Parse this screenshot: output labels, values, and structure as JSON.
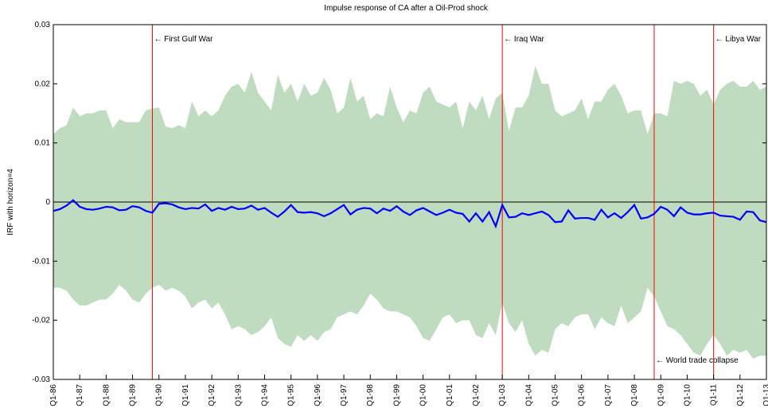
{
  "chart_data": {
    "type": "band-line",
    "title": "Impulse response of CA after a Oil-Prod shock",
    "y_label": "IRF with horizon=4",
    "categories": [
      "Q1-86",
      null,
      null,
      null,
      "Q1-87",
      null,
      null,
      null,
      "Q1-88",
      null,
      null,
      null,
      "Q1-89",
      null,
      null,
      null,
      "Q1-90",
      null,
      null,
      null,
      "Q1-91",
      null,
      null,
      null,
      "Q1-92",
      null,
      null,
      null,
      "Q1-93",
      null,
      null,
      null,
      "Q1-94",
      null,
      null,
      null,
      "Q1-95",
      null,
      null,
      null,
      "Q1-96",
      null,
      null,
      null,
      "Q1-97",
      null,
      null,
      null,
      "Q1-98",
      null,
      null,
      null,
      "Q1-99",
      null,
      null,
      null,
      "Q1-00",
      null,
      null,
      null,
      "Q1-01",
      null,
      null,
      null,
      "Q1-02",
      null,
      null,
      null,
      "Q1-03",
      null,
      null,
      null,
      "Q1-04",
      null,
      null,
      null,
      "Q1-05",
      null,
      null,
      null,
      "Q1-06",
      null,
      null,
      null,
      "Q1-07",
      null,
      null,
      null,
      "Q1-08",
      null,
      null,
      null,
      "Q1-09",
      null,
      null,
      null,
      "Q1-10",
      null,
      null,
      null,
      "Q1-11",
      null,
      null,
      null,
      "Q1-12",
      null,
      null,
      null,
      "Q1-13"
    ],
    "series": [
      {
        "color": "#0000ff",
        "values": [
          -0.0015,
          -0.0012,
          -0.0006,
          0.0003,
          -0.0008,
          -0.0012,
          -0.0013,
          -0.0011,
          -0.0008,
          -0.0009,
          -0.0014,
          -0.0013,
          -0.0007,
          -0.0009,
          -0.0015,
          -0.0018,
          -0.0003,
          -0.0002,
          -0.0004,
          -0.0009,
          -0.0012,
          -0.001,
          -0.0011,
          -0.0004,
          -0.0015,
          -0.001,
          -0.0013,
          -0.0008,
          -0.0012,
          -0.0011,
          -0.0006,
          -0.0013,
          -0.001,
          -0.0018,
          -0.0025,
          -0.0016,
          -0.0005,
          -0.0017,
          -0.0018,
          -0.0017,
          -0.0019,
          -0.0024,
          -0.0019,
          -0.0012,
          -0.0005,
          -0.0021,
          -0.0013,
          -0.001,
          -0.0011,
          -0.0019,
          -0.0011,
          -0.0015,
          -0.0007,
          -0.0016,
          -0.0022,
          -0.0014,
          -0.001,
          -0.0016,
          -0.0022,
          -0.0018,
          -0.0013,
          -0.0018,
          -0.002,
          -0.0033,
          -0.0019,
          -0.0033,
          -0.0017,
          -0.0041,
          -0.0005,
          -0.0026,
          -0.0025,
          -0.0019,
          -0.0022,
          -0.0019,
          -0.0016,
          -0.0022,
          -0.0034,
          -0.0033,
          -0.0014,
          -0.0028,
          -0.0027,
          -0.0027,
          -0.003,
          -0.0013,
          -0.0026,
          -0.0019,
          -0.0027,
          -0.0017,
          -0.0005,
          -0.0028,
          -0.0026,
          -0.002,
          -0.0008,
          -0.0013,
          -0.0024,
          -0.0009,
          -0.0018,
          -0.0021,
          -0.0021,
          -0.0019,
          -0.0018,
          -0.0023,
          -0.0024,
          -0.0025,
          -0.003,
          -0.0016,
          -0.0017,
          -0.0031,
          -0.0034
        ]
      }
    ],
    "band": {
      "color": "#c0dcc0",
      "upper": [
        0.0115,
        0.0125,
        0.013,
        0.016,
        0.0145,
        0.015,
        0.015,
        0.0155,
        0.0155,
        0.0125,
        0.014,
        0.0135,
        0.0135,
        0.0135,
        0.0155,
        0.0158,
        0.016,
        0.0128,
        0.0125,
        0.013,
        0.0125,
        0.017,
        0.0145,
        0.0155,
        0.0145,
        0.0155,
        0.018,
        0.0195,
        0.02,
        0.0185,
        0.022,
        0.0185,
        0.017,
        0.0155,
        0.0215,
        0.0185,
        0.02,
        0.017,
        0.02,
        0.018,
        0.0185,
        0.021,
        0.019,
        0.015,
        0.016,
        0.021,
        0.017,
        0.018,
        0.014,
        0.015,
        0.0145,
        0.0195,
        0.016,
        0.0135,
        0.0155,
        0.015,
        0.0185,
        0.0195,
        0.017,
        0.0165,
        0.016,
        0.017,
        0.0125,
        0.017,
        0.0155,
        0.018,
        0.014,
        0.0175,
        0.0185,
        0.012,
        0.016,
        0.016,
        0.018,
        0.023,
        0.02,
        0.02,
        0.0155,
        0.0145,
        0.015,
        0.0155,
        0.0175,
        0.014,
        0.017,
        0.017,
        0.019,
        0.02,
        0.018,
        0.015,
        0.0155,
        0.0155,
        0.0115,
        0.015,
        0.015,
        0.0145,
        0.0205,
        0.02,
        0.0205,
        0.02,
        0.018,
        0.019,
        0.0165,
        0.019,
        0.02,
        0.0205,
        0.0195,
        0.0195,
        0.0205,
        0.019,
        0.0195
      ],
      "lower": [
        -0.0145,
        -0.0145,
        -0.015,
        -0.0165,
        -0.0175,
        -0.0175,
        -0.017,
        -0.0165,
        -0.0165,
        -0.0155,
        -0.014,
        -0.015,
        -0.0165,
        -0.017,
        -0.0155,
        -0.0145,
        -0.014,
        -0.015,
        -0.0145,
        -0.015,
        -0.016,
        -0.018,
        -0.017,
        -0.0165,
        -0.018,
        -0.017,
        -0.019,
        -0.0215,
        -0.021,
        -0.0215,
        -0.0225,
        -0.022,
        -0.021,
        -0.0195,
        -0.023,
        -0.024,
        -0.0245,
        -0.0225,
        -0.0235,
        -0.0225,
        -0.0235,
        -0.022,
        -0.0215,
        -0.0195,
        -0.019,
        -0.0185,
        -0.019,
        -0.0175,
        -0.0155,
        -0.0165,
        -0.018,
        -0.0185,
        -0.0185,
        -0.019,
        -0.0195,
        -0.021,
        -0.023,
        -0.0235,
        -0.0215,
        -0.0195,
        -0.019,
        -0.0205,
        -0.02,
        -0.02,
        -0.0225,
        -0.023,
        -0.0205,
        -0.0225,
        -0.017,
        -0.0205,
        -0.022,
        -0.02,
        -0.024,
        -0.026,
        -0.025,
        -0.0255,
        -0.0215,
        -0.0205,
        -0.021,
        -0.0195,
        -0.019,
        -0.019,
        -0.0215,
        -0.0195,
        -0.0205,
        -0.021,
        -0.0175,
        -0.0205,
        -0.0195,
        -0.0185,
        -0.0145,
        -0.016,
        -0.0185,
        -0.021,
        -0.0215,
        -0.0225,
        -0.024,
        -0.0255,
        -0.026,
        -0.024,
        -0.0225,
        -0.024,
        -0.026,
        -0.025,
        -0.0255,
        -0.025,
        -0.0265,
        -0.026,
        -0.026
      ]
    },
    "ylim": [
      -0.03,
      0.03
    ],
    "yticks": [
      -0.03,
      -0.02,
      -0.01,
      0,
      0.01,
      0.02,
      0.03
    ],
    "annotations": [
      {
        "x": 15,
        "label": "← First Gulf War",
        "color": "#ff0000",
        "at": "top"
      },
      {
        "x": 68,
        "label": "← Iraq War",
        "color": "#ff0000",
        "at": "top"
      },
      {
        "x": 91,
        "label": "← World trade collapse",
        "color": "#ff0000",
        "at": "bottom"
      },
      {
        "x": 100,
        "label": "← Libya War",
        "color": "#ff0000",
        "at": "top"
      }
    ]
  }
}
